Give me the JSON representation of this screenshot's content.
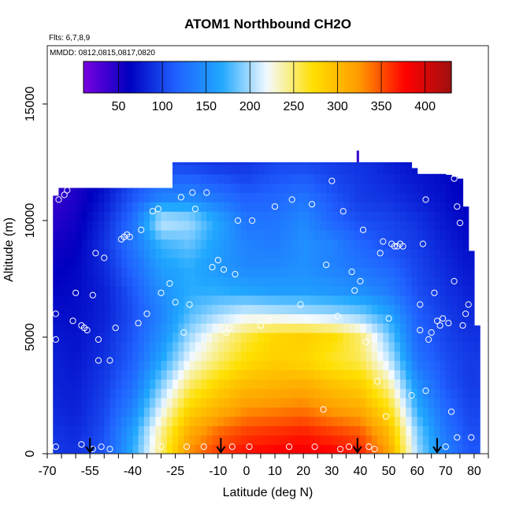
{
  "chart_data": {
    "type": "heatmap",
    "title": "ATOM1 Northbound CH2O",
    "notes": {
      "flights": "Flts: 6,7,8,9",
      "dates": "MMDD: 0812,0815,0817,0820"
    },
    "xlabel": "Latitude (deg N)",
    "ylabel": "Altitude (m)",
    "xlim": [
      -70,
      85
    ],
    "ylim": [
      0,
      17500
    ],
    "xticks": [
      -70,
      -55,
      -40,
      -25,
      -10,
      0,
      10,
      20,
      30,
      40,
      50,
      60,
      70,
      80
    ],
    "yticks": [
      0,
      5000,
      10000,
      15000
    ],
    "colorbar": {
      "range": [
        10,
        430
      ],
      "ticks": [
        50,
        100,
        150,
        200,
        250,
        300,
        350,
        400
      ],
      "colors": [
        "#7a00e0",
        "#0000c0",
        "#2060ff",
        "#20a8ff",
        "#f4faff",
        "#ffe000",
        "#ff9a00",
        "#ff0000",
        "#a01010"
      ]
    },
    "field": {
      "lat": [
        -68,
        -60,
        -50,
        -40,
        -30,
        -20,
        -10,
        0,
        10,
        20,
        30,
        40,
        50,
        60,
        70,
        78
      ],
      "alt": [
        0,
        1000,
        2000,
        3000,
        4000,
        5000,
        6000,
        7000,
        8000,
        9000,
        10000,
        11000,
        12500
      ],
      "values": [
        [
          95,
          90,
          110,
          170,
          250,
          330,
          360,
          375,
          380,
          385,
          380,
          370,
          320,
          200,
          140,
          110
        ],
        [
          90,
          85,
          105,
          160,
          240,
          310,
          340,
          355,
          360,
          365,
          355,
          345,
          300,
          190,
          130,
          105
        ],
        [
          85,
          80,
          100,
          140,
          215,
          280,
          305,
          325,
          330,
          335,
          320,
          310,
          270,
          170,
          120,
          100
        ],
        [
          80,
          78,
          95,
          125,
          190,
          250,
          280,
          300,
          305,
          310,
          295,
          285,
          240,
          150,
          110,
          95
        ],
        [
          80,
          75,
          90,
          115,
          165,
          220,
          250,
          275,
          285,
          280,
          265,
          255,
          210,
          130,
          105,
          95
        ],
        [
          75,
          72,
          85,
          110,
          150,
          200,
          235,
          260,
          280,
          285,
          275,
          250,
          190,
          120,
          100,
          90
        ],
        [
          70,
          70,
          80,
          105,
          140,
          180,
          200,
          215,
          210,
          205,
          200,
          190,
          165,
          115,
          95,
          85
        ],
        [
          65,
          68,
          80,
          110,
          150,
          170,
          170,
          165,
          160,
          160,
          155,
          150,
          135,
          105,
          90,
          80
        ],
        [
          60,
          65,
          85,
          120,
          160,
          170,
          155,
          145,
          145,
          150,
          140,
          130,
          120,
          100,
          85,
          75
        ],
        [
          55,
          60,
          90,
          130,
          175,
          185,
          160,
          140,
          135,
          150,
          140,
          120,
          105,
          95,
          80,
          70
        ],
        [
          45,
          55,
          85,
          125,
          210,
          200,
          165,
          130,
          130,
          145,
          120,
          105,
          100,
          90,
          75,
          65
        ],
        [
          40,
          50,
          75,
          110,
          140,
          145,
          130,
          115,
          120,
          130,
          110,
          95,
          90,
          80,
          70,
          60
        ],
        [
          40,
          45,
          60,
          90,
          100,
          95,
          90,
          90,
          100,
          100,
          95,
          90,
          80,
          70,
          65,
          55
        ]
      ]
    },
    "coverage": [
      [
        -68,
        0,
        10900
      ],
      [
        -65,
        0,
        11400
      ],
      [
        -50,
        0,
        11400
      ],
      [
        -27,
        0,
        11400
      ],
      [
        -25,
        0,
        12500
      ],
      [
        58,
        0,
        12500
      ],
      [
        60,
        0,
        12000
      ],
      [
        70,
        0,
        12000
      ],
      [
        75,
        0,
        11800
      ],
      [
        77,
        0,
        10600
      ],
      [
        79,
        0,
        8700
      ],
      [
        80,
        0,
        6500
      ],
      [
        81,
        0,
        5500
      ],
      [
        81,
        0,
        700
      ]
    ],
    "column_spike": {
      "lat": 39,
      "alt": [
        12500,
        13000
      ]
    },
    "points": [
      [
        -67,
        300
      ],
      [
        -67,
        4900
      ],
      [
        -67,
        6000
      ],
      [
        -66,
        10900
      ],
      [
        -64,
        11100
      ],
      [
        -63,
        11300
      ],
      [
        -62,
        11600
      ],
      [
        -61,
        5700
      ],
      [
        -60,
        6900
      ],
      [
        -58,
        400
      ],
      [
        -58,
        5500
      ],
      [
        -57,
        5400
      ],
      [
        -56,
        5300
      ],
      [
        -54,
        200
      ],
      [
        -54,
        6800
      ],
      [
        -53,
        8600
      ],
      [
        -52,
        4000
      ],
      [
        -52,
        4900
      ],
      [
        -51,
        300
      ],
      [
        -50,
        8400
      ],
      [
        -48,
        4000
      ],
      [
        -48,
        200
      ],
      [
        -46,
        5400
      ],
      [
        -44,
        9200
      ],
      [
        -43,
        9300
      ],
      [
        -42,
        9400
      ],
      [
        -41,
        9300
      ],
      [
        -38,
        5600
      ],
      [
        -37,
        9600
      ],
      [
        -35,
        6000
      ],
      [
        -33,
        10400
      ],
      [
        -31,
        10500
      ],
      [
        -30,
        300
      ],
      [
        -30,
        6900
      ],
      [
        -27,
        7300
      ],
      [
        -25,
        6500
      ],
      [
        -23,
        11000
      ],
      [
        -22,
        5200
      ],
      [
        -21,
        300
      ],
      [
        -20,
        6400
      ],
      [
        -19,
        11200
      ],
      [
        -18,
        10500
      ],
      [
        -15,
        300
      ],
      [
        -14,
        11200
      ],
      [
        -12,
        8000
      ],
      [
        -10,
        8300
      ],
      [
        -8,
        7900
      ],
      [
        -7,
        5200
      ],
      [
        -6,
        5400
      ],
      [
        -5,
        300
      ],
      [
        -4,
        7700
      ],
      [
        -3,
        10000
      ],
      [
        1,
        300
      ],
      [
        2,
        10000
      ],
      [
        5,
        5500
      ],
      [
        8,
        5700
      ],
      [
        10,
        10600
      ],
      [
        15,
        300
      ],
      [
        16,
        10900
      ],
      [
        19,
        6400
      ],
      [
        23,
        10700
      ],
      [
        24,
        300
      ],
      [
        27,
        1900
      ],
      [
        28,
        8100
      ],
      [
        30,
        11700
      ],
      [
        32,
        5900
      ],
      [
        33,
        200
      ],
      [
        34,
        10400
      ],
      [
        36,
        300
      ],
      [
        37,
        7800
      ],
      [
        38,
        7000
      ],
      [
        40,
        7400
      ],
      [
        41,
        9600
      ],
      [
        42,
        4800
      ],
      [
        43,
        300
      ],
      [
        45,
        200
      ],
      [
        46,
        3100
      ],
      [
        47,
        8600
      ],
      [
        48,
        9100
      ],
      [
        49,
        1600
      ],
      [
        50,
        5800
      ],
      [
        51,
        9000
      ],
      [
        52,
        8900
      ],
      [
        53,
        8900
      ],
      [
        54,
        9000
      ],
      [
        55,
        8900
      ],
      [
        58,
        2500
      ],
      [
        61,
        5300
      ],
      [
        61,
        6400
      ],
      [
        62,
        9000
      ],
      [
        63,
        2700
      ],
      [
        63,
        10900
      ],
      [
        65,
        5200
      ],
      [
        66,
        6900
      ],
      [
        67,
        5700
      ],
      [
        68,
        5500
      ],
      [
        69,
        5800
      ],
      [
        70,
        300
      ],
      [
        71,
        5600
      ],
      [
        72,
        1800
      ],
      [
        73,
        11800
      ],
      [
        74,
        700
      ],
      [
        74,
        10600
      ],
      [
        75,
        9900
      ],
      [
        76,
        5500
      ],
      [
        77,
        6000
      ],
      [
        78,
        6400
      ],
      [
        79,
        700
      ],
      [
        73,
        7400
      ],
      [
        64,
        4900
      ]
    ],
    "arrows": [
      -55,
      -9,
      39,
      67
    ]
  }
}
